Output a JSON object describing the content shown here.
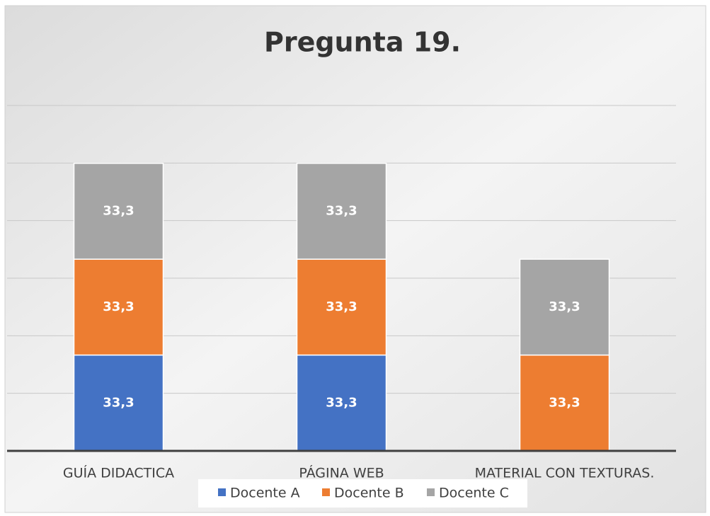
{
  "chart_data": {
    "type": "stacked_bar",
    "title": "Pregunta 19.",
    "categories": [
      "GUÍA DIDACTICA",
      "PÁGINA WEB",
      "MATERIAL CON TEXTURAS."
    ],
    "series": [
      {
        "name": "Docente A",
        "color": "#4472c4",
        "values": [
          33.3,
          33.3,
          null
        ],
        "value_labels": [
          "33,3",
          "33,3",
          null
        ]
      },
      {
        "name": "Docente B",
        "color": "#ed7d31",
        "values": [
          33.3,
          33.3,
          33.3
        ],
        "value_labels": [
          "33,3",
          "33,3",
          "33,3"
        ]
      },
      {
        "name": "Docente C",
        "color": "#a5a5a5",
        "values": [
          33.3,
          33.3,
          33.3
        ],
        "value_labels": [
          "33,3",
          "33,3",
          "33,3"
        ]
      }
    ],
    "ylim": [
      0,
      120
    ],
    "yticks": [
      0,
      20,
      40,
      60,
      80,
      100,
      120
    ],
    "grid": true,
    "legend": "bottom"
  }
}
